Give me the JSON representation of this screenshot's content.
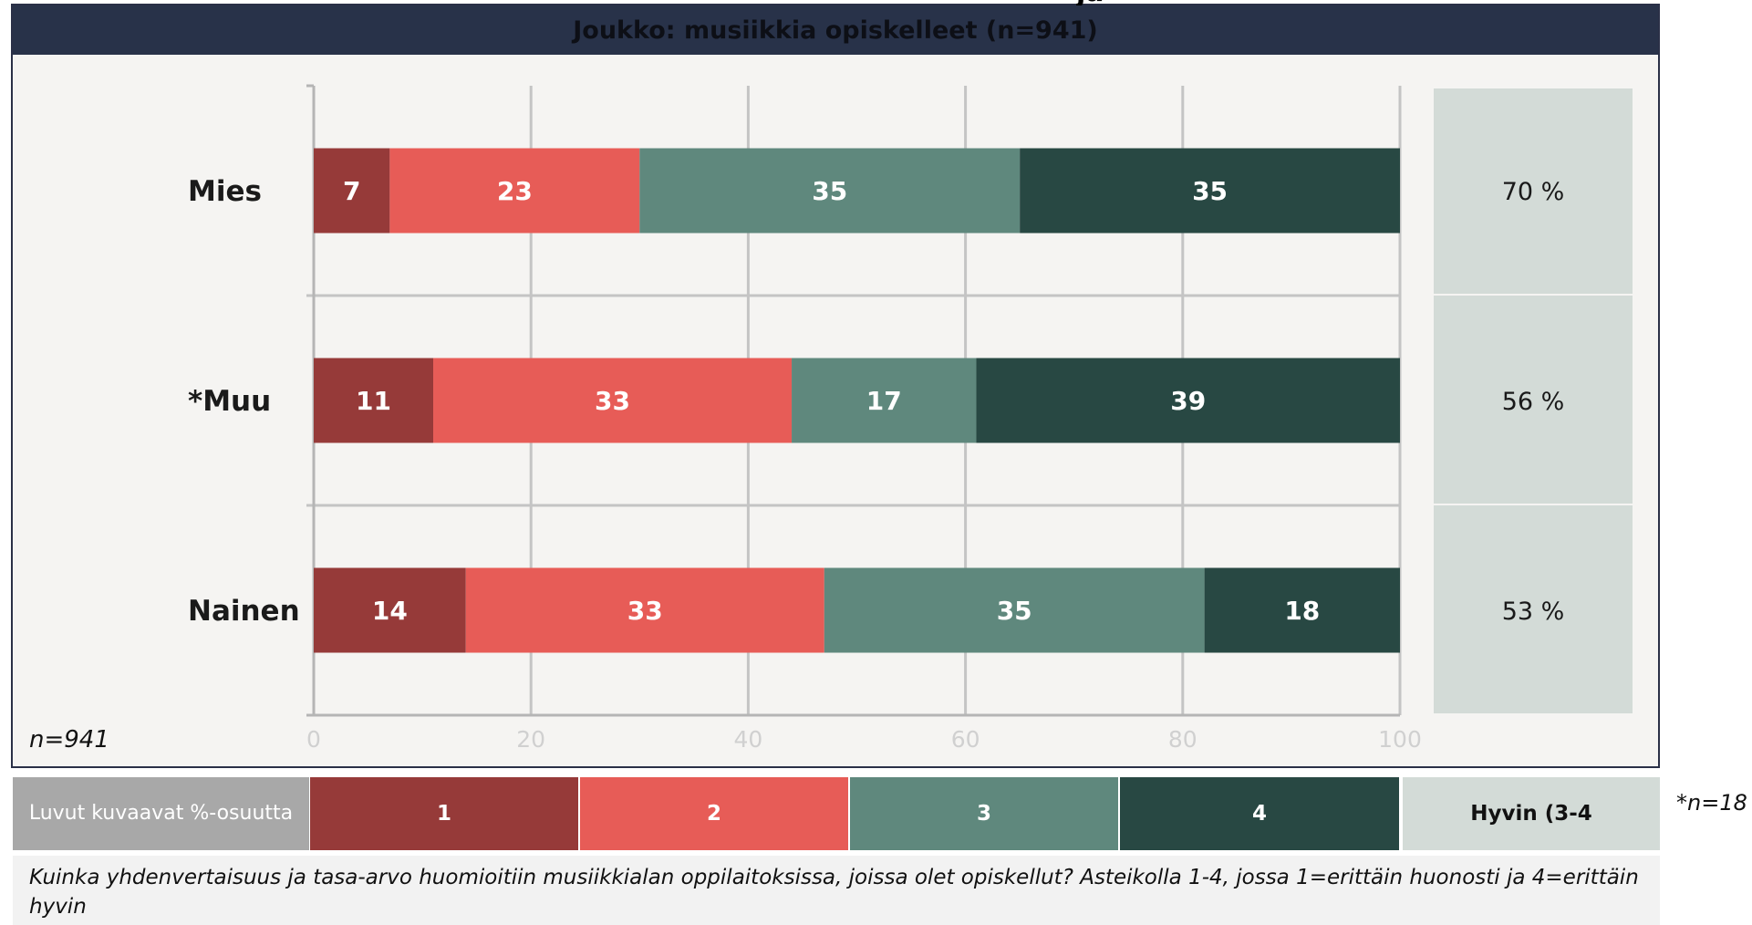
{
  "header": {
    "title": "Joukko: musiikkia opiskelleet (n=941)",
    "top_clipped_text": "ja"
  },
  "chart_data": {
    "type": "bar",
    "orientation": "horizontal",
    "stacked": true,
    "categories": [
      "Mies",
      "*Muu",
      "Nainen"
    ],
    "series": [
      {
        "name": "1",
        "values": [
          7,
          11,
          14
        ],
        "color": "#963a39"
      },
      {
        "name": "2",
        "values": [
          23,
          33,
          33
        ],
        "color": "#e75c57"
      },
      {
        "name": "3",
        "values": [
          35,
          17,
          35
        ],
        "color": "#5f887d"
      },
      {
        "name": "4",
        "values": [
          35,
          39,
          18
        ],
        "color": "#284843"
      }
    ],
    "summary_label": "Hyvin (3-4",
    "summary_values": [
      "70 %",
      "56 %",
      "53 %"
    ],
    "xlim": [
      0,
      100
    ],
    "xticks": [
      0,
      20,
      40,
      60,
      80,
      100
    ],
    "grid": true,
    "legend_placement": "bottom"
  },
  "notes": {
    "n_label": "n=941",
    "footnote": "*n=18"
  },
  "legend": {
    "description": "Luvut kuvaavat %-osuutta",
    "items": [
      "1",
      "2",
      "3",
      "4"
    ],
    "summary": "Hyvin (3-4"
  },
  "question": "Kuinka yhdenvertaisuus ja tasa-arvo huomioitiin musiikkialan oppilaitoksissa, joissa olet opiskellut? Asteikolla 1-4, jossa 1=erittäin huonosti ja 4=erittäin hyvin",
  "colors": {
    "header_bg": "#283249",
    "panel_bg": "#f5f4f2",
    "summary_bg": "#d3dbd7"
  }
}
